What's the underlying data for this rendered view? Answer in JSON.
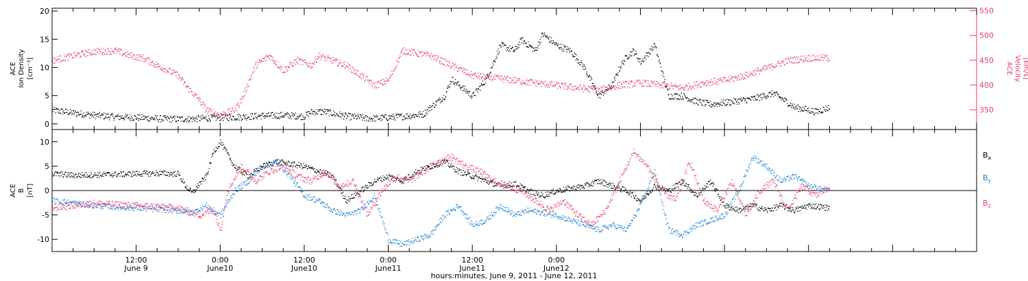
{
  "chart_data": [
    {
      "type": "scatter",
      "panel": "top",
      "left_axis": {
        "label_lines": [
          "ACE",
          "Ion Density",
          "[cm⁻³]"
        ],
        "ylim": [
          -1,
          20.5
        ],
        "ticks": [
          0,
          5,
          10,
          15,
          20
        ]
      },
      "right_axis": {
        "label_lines": [
          "ACE",
          "Velocity",
          "[km/s]"
        ],
        "ylim": [
          310,
          555
        ],
        "ticks": [
          350,
          400,
          450,
          500,
          550
        ],
        "color": "#e8386a"
      },
      "series": [
        {
          "axis": "left",
          "color": "#000000",
          "x": [
            0,
            3,
            6,
            9,
            12,
            15,
            18,
            21,
            24,
            27,
            30,
            33,
            36,
            37,
            39,
            42,
            44,
            45,
            48,
            51,
            53,
            54,
            56,
            57,
            58,
            60,
            62,
            63,
            64,
            66,
            67,
            69,
            70,
            72,
            74,
            76,
            78,
            80,
            81,
            82,
            83,
            84,
            86,
            88,
            90,
            92,
            94,
            97,
            100,
            103,
            106,
            108,
            109,
            111
          ],
          "y": [
            2.5,
            2,
            1.6,
            1.3,
            1.2,
            1,
            0.9,
            1,
            1.2,
            1.3,
            1.5,
            1.6,
            1.4,
            2.2,
            2.2,
            1.4,
            1.2,
            1,
            1.2,
            1.5,
            1.8,
            3,
            5,
            8,
            7,
            5,
            8,
            11,
            14,
            13,
            15,
            13,
            16,
            14,
            13,
            10,
            5,
            7,
            10,
            12,
            13,
            11,
            14,
            5,
            5,
            4,
            3.5,
            4,
            4.5,
            5.5,
            3,
            2.5,
            2.2,
            3
          ]
        },
        {
          "axis": "right",
          "color": "#e8386a",
          "x": [
            0,
            3,
            6,
            9,
            11,
            13,
            15,
            18,
            19,
            21,
            22,
            24,
            26,
            27,
            29,
            31,
            33,
            35,
            37,
            38,
            40,
            42,
            44,
            46,
            48,
            50,
            52,
            54,
            57,
            60,
            63,
            66,
            69,
            72,
            75,
            78,
            81,
            84,
            87,
            90,
            93,
            96,
            99,
            101,
            102,
            105,
            108,
            111
          ],
          "y": [
            450,
            460,
            468,
            470,
            460,
            455,
            440,
            420,
            400,
            370,
            350,
            340,
            350,
            370,
            440,
            460,
            430,
            450,
            440,
            460,
            450,
            440,
            420,
            400,
            410,
            470,
            465,
            460,
            440,
            420,
            415,
            410,
            405,
            400,
            395,
            390,
            400,
            405,
            400,
            395,
            405,
            410,
            420,
            430,
            435,
            450,
            455,
            455
          ]
        }
      ]
    },
    {
      "type": "scatter",
      "panel": "bottom",
      "left_axis": {
        "label_lines": [
          "ACE",
          "B",
          "[nT]"
        ],
        "ylim": [
          -12.5,
          12.5
        ],
        "ticks": [
          -10,
          -5,
          0,
          5,
          10
        ]
      },
      "zero_line": true,
      "legend": {
        "position": "right",
        "entries": [
          {
            "label": "B",
            "sub": "x",
            "color": "#000000"
          },
          {
            "label": "B",
            "sub": "y",
            "color": "#1a7fd8"
          },
          {
            "label": "B",
            "sub": "z",
            "color": "#e8386a"
          }
        ]
      },
      "series": [
        {
          "name": "Bx",
          "color": "#000000",
          "x": [
            0,
            3,
            6,
            9,
            12,
            15,
            18,
            19,
            20,
            21,
            22,
            23,
            24,
            26,
            28,
            30,
            32,
            34,
            36,
            38,
            40,
            42,
            44,
            46,
            48,
            50,
            52,
            54,
            56,
            58,
            60,
            62,
            64,
            66,
            68,
            70,
            72,
            74,
            76,
            78,
            80,
            82,
            84,
            86,
            88,
            90,
            92,
            94,
            96,
            98,
            100,
            102,
            104,
            106,
            108,
            111
          ],
          "y": [
            3.5,
            3.2,
            3.3,
            3.4,
            3.5,
            3.6,
            3.5,
            1,
            -0.5,
            1.5,
            3,
            8,
            10,
            5,
            3,
            5,
            6,
            5.5,
            5,
            4,
            3,
            -2,
            0,
            2,
            3,
            2,
            4,
            5,
            6,
            4,
            3,
            2,
            1,
            1.5,
            0,
            -1,
            0,
            0.5,
            1,
            2,
            1,
            0,
            -2,
            1,
            0,
            2,
            -1,
            2,
            -3,
            -4,
            -3,
            -4,
            -3,
            -4,
            -3,
            -3.5
          ]
        },
        {
          "name": "By",
          "color": "#1a7fd8",
          "x": [
            0,
            3,
            6,
            9,
            12,
            15,
            18,
            20,
            22,
            24,
            26,
            28,
            30,
            32,
            34,
            36,
            38,
            40,
            42,
            44,
            46,
            48,
            50,
            52,
            54,
            56,
            58,
            60,
            62,
            64,
            66,
            68,
            70,
            72,
            74,
            76,
            78,
            80,
            82,
            84,
            86,
            88,
            90,
            92,
            94,
            96,
            98,
            100,
            102,
            104,
            106,
            108,
            111
          ],
          "y": [
            -2,
            -2.5,
            -3,
            -3.3,
            -3.5,
            -3.8,
            -4,
            -4.5,
            -3,
            -5,
            0,
            2,
            5,
            6,
            3,
            -1,
            -2,
            -4,
            -5,
            -4,
            -1,
            -10,
            -11,
            -10,
            -9,
            -5,
            -3,
            -7,
            -6,
            -3,
            -5,
            -4,
            -4.5,
            -5,
            -6,
            -7,
            -8,
            -7,
            -8,
            -3,
            4,
            -8,
            -9,
            -7,
            -6,
            -5,
            0,
            7,
            5,
            2,
            3,
            1,
            0
          ]
        },
        {
          "name": "Bz",
          "color": "#e8386a",
          "x": [
            0,
            3,
            6,
            9,
            12,
            15,
            18,
            20,
            21,
            23,
            24,
            25,
            27,
            29,
            31,
            33,
            35,
            37,
            39,
            41,
            43,
            45,
            47,
            49,
            51,
            53,
            55,
            57,
            59,
            61,
            63,
            65,
            67,
            69,
            71,
            73,
            75,
            77,
            79,
            81,
            83,
            85,
            87,
            89,
            91,
            93,
            95,
            97,
            99,
            101,
            103,
            105,
            107,
            109,
            111
          ],
          "y": [
            -3.5,
            -3,
            -2.5,
            -2.8,
            -3,
            -3.2,
            -3.5,
            -4.5,
            -5,
            -4,
            -8,
            0,
            5,
            2,
            4,
            5,
            3,
            2,
            4,
            1,
            2,
            -5,
            0,
            3,
            2,
            4,
            6,
            7,
            5,
            4,
            2,
            1,
            0,
            -2,
            -4,
            -2,
            -5,
            -7,
            -4,
            2,
            8,
            5,
            0,
            -2,
            6,
            -2,
            -4,
            2,
            -5,
            0,
            2,
            -4,
            1,
            -1,
            1
          ]
        }
      ]
    }
  ],
  "x_axis": {
    "xlim": [
      0,
      132
    ],
    "tick_labels": [
      {
        "x": 12,
        "line1": "12:00",
        "line2": "June 9"
      },
      {
        "x": 24,
        "line1": "0:00",
        "line2": "June10"
      },
      {
        "x": 36,
        "line1": "12:00",
        "line2": "June10"
      },
      {
        "x": 48,
        "line1": "0:00",
        "line2": "June11"
      },
      {
        "x": 60,
        "line1": "12:00",
        "line2": "June11"
      },
      {
        "x": 72,
        "line1": "0:00",
        "line2": "June12"
      }
    ],
    "title": "hours:minutes, June  9, 2011 - June 12, 2011"
  }
}
